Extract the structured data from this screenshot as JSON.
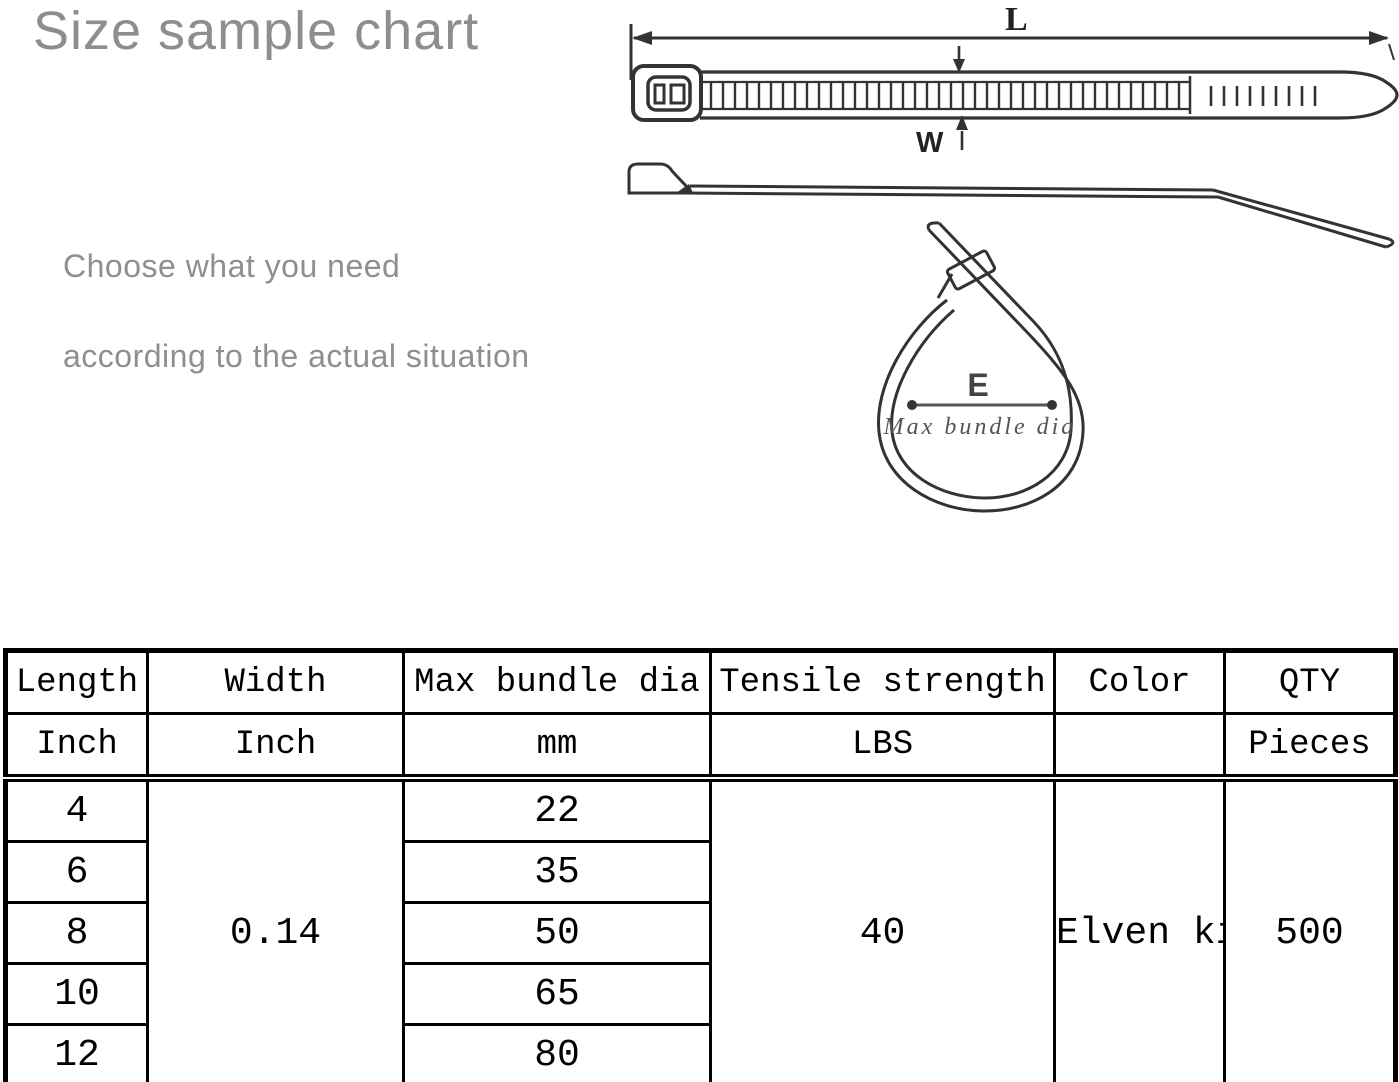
{
  "page": {
    "title": "Size sample chart",
    "subtitle": [
      "Choose what you need",
      "according to the actual situation"
    ]
  },
  "diagram": {
    "length_label": "L",
    "width_label": "W",
    "diameter_label": "E",
    "diameter_caption": "Max bundle dia"
  },
  "table": {
    "headers": [
      "Length",
      "Width",
      "Max bundle dia",
      "Tensile strength",
      "Color",
      "QTY"
    ],
    "units": [
      "Inch",
      "Inch",
      "mm",
      "LBS",
      "",
      "Pieces"
    ],
    "lengths": [
      "4",
      "6",
      "8",
      "10",
      "12"
    ],
    "max_bundle_dias": [
      "22",
      "35",
      "50",
      "65",
      "80"
    ],
    "width_value": "0.14",
    "tensile_strength_value": "40",
    "color_value": "Elven kinds",
    "qty_value": "500"
  },
  "colors": {
    "title_gray": "#8e8e8e",
    "line_art": "#333333",
    "table_border": "#000000"
  }
}
